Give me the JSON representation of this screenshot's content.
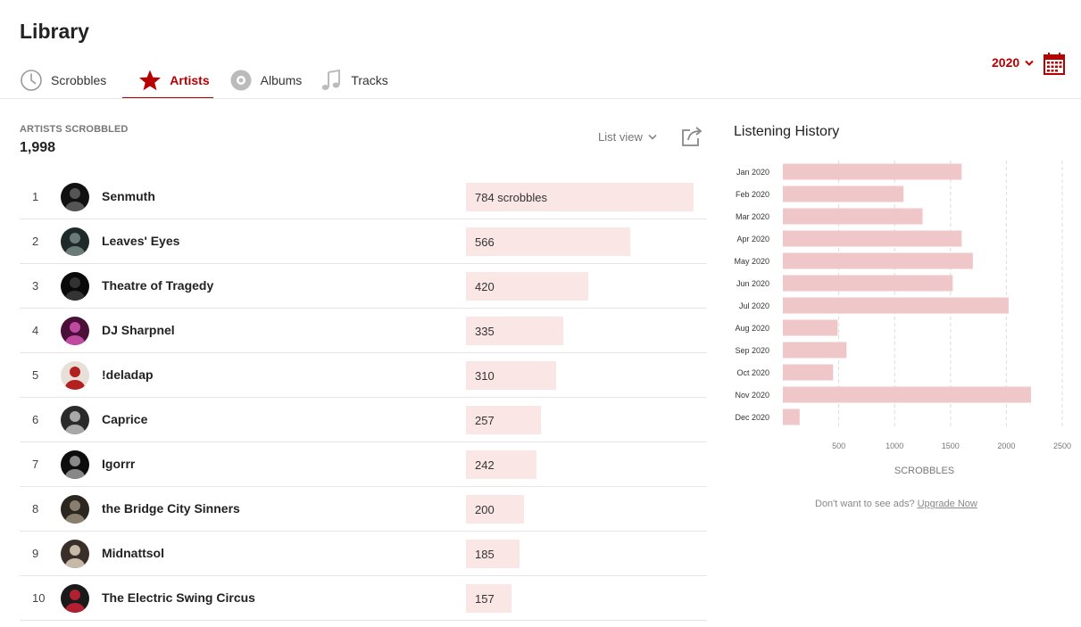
{
  "header": {
    "title": "Library",
    "tabs": [
      {
        "label": "Scrobbles",
        "icon": "clock-icon",
        "active": false
      },
      {
        "label": "Artists",
        "icon": "star-icon",
        "active": true
      },
      {
        "label": "Albums",
        "icon": "disc-icon",
        "active": false
      },
      {
        "label": "Tracks",
        "icon": "music-note-icon",
        "active": false
      }
    ],
    "year": "2020"
  },
  "colors": {
    "accent": "#b90000",
    "row_bar": "#fbe6e6",
    "history_bar": "#efc7c8"
  },
  "summary": {
    "label": "ARTISTS SCROBBLED",
    "count": "1,998"
  },
  "view": {
    "label": "List view"
  },
  "artists": [
    {
      "rank": "1",
      "name": "Senmuth",
      "scrobbles": 784,
      "label": "784 scrobbles"
    },
    {
      "rank": "2",
      "name": "Leaves' Eyes",
      "scrobbles": 566,
      "label": "566"
    },
    {
      "rank": "3",
      "name": "Theatre of Tragedy",
      "scrobbles": 420,
      "label": "420"
    },
    {
      "rank": "4",
      "name": "DJ Sharpnel",
      "scrobbles": 335,
      "label": "335"
    },
    {
      "rank": "5",
      "name": "!deladap",
      "scrobbles": 310,
      "label": "310"
    },
    {
      "rank": "6",
      "name": "Caprice",
      "scrobbles": 257,
      "label": "257"
    },
    {
      "rank": "7",
      "name": "Igorrr",
      "scrobbles": 242,
      "label": "242"
    },
    {
      "rank": "8",
      "name": "the Bridge City Sinners",
      "scrobbles": 200,
      "label": "200"
    },
    {
      "rank": "9",
      "name": "Midnattsol",
      "scrobbles": 185,
      "label": "185"
    },
    {
      "rank": "10",
      "name": "The Electric Swing Circus",
      "scrobbles": 157,
      "label": "157"
    }
  ],
  "history": {
    "title": "Listening History"
  },
  "chart_data": {
    "type": "bar",
    "orientation": "horizontal",
    "categories": [
      "Jan 2020",
      "Feb 2020",
      "Mar 2020",
      "Apr 2020",
      "May 2020",
      "Jun 2020",
      "Jul 2020",
      "Aug 2020",
      "Sep 2020",
      "Oct 2020",
      "Nov 2020",
      "Dec 2020"
    ],
    "values": [
      1600,
      1080,
      1250,
      1600,
      1700,
      1520,
      2020,
      490,
      570,
      450,
      2220,
      150
    ],
    "xlabel": "SCROBBLES",
    "xticks": [
      500,
      1000,
      1500,
      2000,
      2500
    ],
    "xlim": [
      0,
      2500
    ],
    "grid": true
  },
  "ad": {
    "text": "Don't want to see ads?",
    "link": "Upgrade Now"
  }
}
